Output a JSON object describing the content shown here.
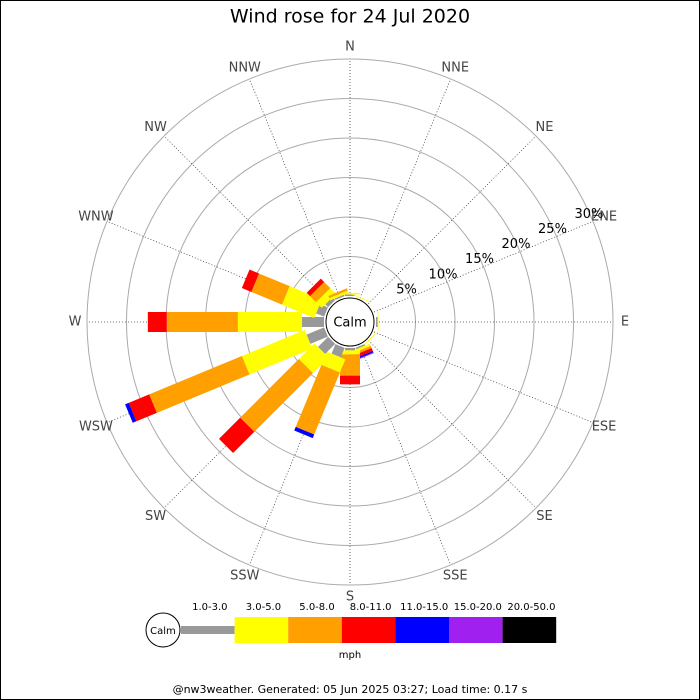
{
  "chart_data": {
    "type": "windrose",
    "title": "Wind rose for 24 Jul 2020",
    "directions": [
      "N",
      "NNE",
      "NE",
      "ENE",
      "E",
      "ESE",
      "SE",
      "SSE",
      "S",
      "SSW",
      "SW",
      "WSW",
      "W",
      "WNW",
      "NW",
      "NNW"
    ],
    "calm_label": "Calm",
    "unit": "mph",
    "rlim": [
      0,
      30
    ],
    "rticks": [
      {
        "value": 5,
        "label": "5%"
      },
      {
        "value": 10,
        "label": "10%"
      },
      {
        "value": 15,
        "label": "15%"
      },
      {
        "value": 20,
        "label": "20%"
      },
      {
        "value": 25,
        "label": "25%"
      },
      {
        "value": 30,
        "label": "30%"
      }
    ],
    "series": [
      {
        "name": "1.0-3.0",
        "color": "#999999",
        "values": [
          0.2,
          0,
          0,
          0,
          0.2,
          0,
          0,
          0.2,
          0.3,
          1.3,
          1.8,
          2.4,
          2.8,
          1.1,
          0.5,
          0.2
        ]
      },
      {
        "name": "3.0-5.0",
        "color": "#ffff00",
        "values": [
          0.2,
          0.1,
          0,
          0,
          0.1,
          0,
          0.1,
          0.3,
          0.5,
          1.8,
          2.8,
          8.6,
          8.1,
          4.4,
          1.0,
          0.3
        ]
      },
      {
        "name": "5.0-8.0",
        "color": "#ffa000",
        "values": [
          0,
          0,
          0,
          0,
          0,
          0,
          0,
          0.3,
          2.7,
          8.5,
          10.5,
          12.7,
          9.0,
          4.2,
          1.1,
          0.3
        ]
      },
      {
        "name": "8.0-11.0",
        "color": "#ff0000",
        "values": [
          0,
          0,
          0,
          0,
          0,
          0,
          0,
          0.4,
          1.1,
          0,
          3.8,
          2.8,
          2.4,
          1.3,
          0.6,
          0
        ]
      },
      {
        "name": "11.0-15.0",
        "color": "#0000ff",
        "values": [
          0,
          0,
          0,
          0,
          0,
          0,
          0,
          0.2,
          0,
          0.5,
          0,
          0.5,
          0,
          0,
          0,
          0
        ]
      },
      {
        "name": "15.0-20.0",
        "color": "#a020f0",
        "values": [
          0,
          0,
          0,
          0,
          0,
          0,
          0,
          0.1,
          0,
          0,
          0,
          0,
          0,
          0,
          0,
          0
        ]
      },
      {
        "name": "20.0-50.0",
        "color": "#000000",
        "values": [
          0,
          0,
          0,
          0,
          0,
          0,
          0,
          0,
          0,
          0,
          0,
          0,
          0,
          0,
          0,
          0
        ]
      }
    ],
    "footer": "@nw3weather. Generated: 05 Jun 2025 03:27; Load time: 0.17 s"
  }
}
